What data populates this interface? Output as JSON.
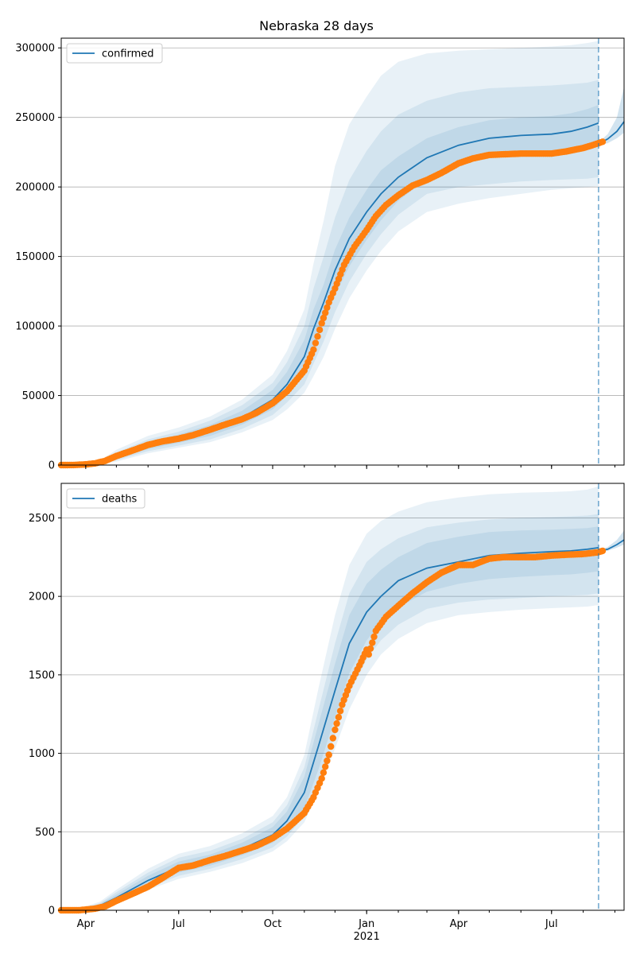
{
  "title": "Nebraska 28 days",
  "colors": {
    "model": "#1f77b4",
    "observed": "#ff7f0e",
    "band": "#1f77b4",
    "grid": "#b0b0b0",
    "vline": "#1f77b4"
  },
  "chart_data": [
    {
      "type": "line",
      "title": "Nebraska 28 days",
      "xlabel": "",
      "ylabel": "",
      "legend": {
        "placement": "top-left",
        "entries": [
          "confirmed"
        ]
      },
      "grid": "horizontal",
      "xlim": [
        "2020-03-08",
        "2021-09-10"
      ],
      "ylim": [
        0,
        307000
      ],
      "yticks": [
        0,
        50000,
        100000,
        150000,
        200000,
        250000,
        300000
      ],
      "ytick_labels": [
        "0",
        "50000",
        "100000",
        "150000",
        "200000",
        "250000",
        "300000"
      ],
      "forecast_start": "2021-08-16",
      "model": {
        "name": "confirmed",
        "x": [
          "2020-03-08",
          "2020-04-01",
          "2020-04-15",
          "2020-05-01",
          "2020-06-01",
          "2020-07-01",
          "2020-08-01",
          "2020-09-01",
          "2020-10-01",
          "2020-10-15",
          "2020-11-01",
          "2020-11-10",
          "2020-11-20",
          "2020-12-01",
          "2020-12-15",
          "2021-01-01",
          "2021-01-15",
          "2021-02-01",
          "2021-03-01",
          "2021-04-01",
          "2021-05-01",
          "2021-06-01",
          "2021-07-01",
          "2021-07-20",
          "2021-08-05",
          "2021-08-16"
        ],
        "y": [
          0,
          500,
          1500,
          6000,
          14000,
          19000,
          25000,
          34000,
          47000,
          58000,
          78000,
          98000,
          117000,
          140000,
          163000,
          182000,
          195000,
          207000,
          221000,
          230000,
          235000,
          237000,
          238000,
          240000,
          243000,
          246000
        ],
        "lower80": [
          0,
          300,
          1000,
          4500,
          11500,
          16000,
          21000,
          29000,
          40000,
          50000,
          66000,
          84000,
          102000,
          122000,
          143000,
          162000,
          176000,
          190000,
          206000,
          216000,
          222000,
          225000,
          226000,
          228000,
          230000,
          233000
        ],
        "upper80": [
          0,
          700,
          2000,
          7500,
          16500,
          22000,
          29000,
          39000,
          54000,
          67000,
          90000,
          112000,
          130000,
          155000,
          178000,
          198000,
          212000,
          222000,
          235000,
          243000,
          248000,
          250000,
          251000,
          253000,
          256000,
          259000
        ],
        "lower95": [
          0,
          150,
          700,
          3500,
          10000,
          14000,
          18500,
          26000,
          36000,
          45000,
          58000,
          73000,
          89000,
          110000,
          132000,
          152000,
          166000,
          180000,
          195000,
          200000,
          202000,
          204000,
          205000,
          205500,
          206000,
          207000
        ],
        "upper95": [
          0,
          900,
          2500,
          9000,
          18500,
          24000,
          32000,
          43000,
          59000,
          74000,
          100000,
          127000,
          150000,
          178000,
          205000,
          226000,
          240000,
          252000,
          262000,
          268000,
          271000,
          272000,
          273000,
          274000,
          275000,
          277000
        ],
        "lower99": [
          0,
          80,
          500,
          2500,
          8500,
          12500,
          16500,
          23500,
          32500,
          40000,
          52000,
          64000,
          78000,
          98000,
          120000,
          140000,
          154000,
          168000,
          182000,
          188000,
          192000,
          195000,
          198000,
          199000,
          200000,
          200500
        ],
        "upper99": [
          0,
          1200,
          3200,
          11000,
          21000,
          27000,
          35000,
          47000,
          65000,
          82000,
          112000,
          145000,
          176000,
          215000,
          245000,
          265000,
          280000,
          290000,
          296000,
          298000,
          299000,
          300000,
          301000,
          302000,
          303500,
          305000
        ]
      },
      "forecast": {
        "x": [
          "2021-08-16",
          "2021-08-25",
          "2021-09-03",
          "2021-09-10"
        ],
        "y": [
          231000,
          234500,
          240000,
          247000
        ],
        "lower": [
          230000,
          231500,
          235000,
          239000
        ],
        "upper": [
          232000,
          238000,
          250000,
          272000
        ]
      },
      "observed": {
        "name": "confirmed observed",
        "x": [
          "2020-03-08",
          "2020-03-20",
          "2020-04-01",
          "2020-04-10",
          "2020-04-20",
          "2020-05-01",
          "2020-05-15",
          "2020-06-01",
          "2020-06-15",
          "2020-07-01",
          "2020-07-15",
          "2020-08-01",
          "2020-08-15",
          "2020-09-01",
          "2020-09-15",
          "2020-10-01",
          "2020-10-15",
          "2020-11-01",
          "2020-11-10",
          "2020-11-18",
          "2020-11-25",
          "2020-12-01",
          "2020-12-10",
          "2020-12-20",
          "2021-01-01",
          "2021-01-10",
          "2021-01-20",
          "2021-02-01",
          "2021-02-15",
          "2021-03-01",
          "2021-03-15",
          "2021-04-01",
          "2021-04-15",
          "2021-05-01",
          "2021-05-15",
          "2021-06-01",
          "2021-06-15",
          "2021-07-01",
          "2021-07-15",
          "2021-08-01",
          "2021-08-10",
          "2021-08-20"
        ],
        "y": [
          0,
          50,
          500,
          1200,
          3000,
          6500,
          10000,
          14500,
          17000,
          19000,
          21500,
          25500,
          29000,
          33000,
          37500,
          44500,
          53000,
          68000,
          83000,
          102000,
          117000,
          127000,
          144000,
          157000,
          169000,
          179000,
          187000,
          194000,
          201000,
          205000,
          210000,
          217000,
          220500,
          223000,
          223500,
          224000,
          224000,
          224000,
          225500,
          228000,
          230000,
          232500
        ]
      }
    },
    {
      "type": "line",
      "title": "",
      "xlabel": "",
      "ylabel": "",
      "legend": {
        "placement": "top-left",
        "entries": [
          "deaths"
        ]
      },
      "grid": "horizontal",
      "xlim": [
        "2020-03-08",
        "2021-09-10"
      ],
      "ylim": [
        0,
        2720
      ],
      "yticks": [
        0,
        500,
        1000,
        1500,
        2000,
        2500
      ],
      "ytick_labels": [
        "0",
        "500",
        "1000",
        "1500",
        "2000",
        "2500"
      ],
      "xtick_labels": [
        "Apr",
        "Jul",
        "Oct",
        "Jan",
        "Apr",
        "Jul"
      ],
      "xtick_dates": [
        "2020-04-01",
        "2020-07-01",
        "2020-10-01",
        "2021-01-01",
        "2021-04-01",
        "2021-07-01"
      ],
      "year_label": "2021",
      "forecast_start": "2021-08-16",
      "model": {
        "name": "deaths",
        "x": [
          "2020-03-08",
          "2020-04-01",
          "2020-04-15",
          "2020-05-01",
          "2020-06-01",
          "2020-07-01",
          "2020-08-01",
          "2020-09-01",
          "2020-10-01",
          "2020-10-15",
          "2020-11-01",
          "2020-11-15",
          "2020-12-01",
          "2020-12-15",
          "2021-01-01",
          "2021-01-15",
          "2021-02-01",
          "2021-03-01",
          "2021-04-01",
          "2021-05-01",
          "2021-06-01",
          "2021-07-01",
          "2021-07-20",
          "2021-08-05",
          "2021-08-16"
        ],
        "y": [
          0,
          10,
          30,
          80,
          190,
          275,
          320,
          390,
          480,
          570,
          750,
          1050,
          1400,
          1700,
          1900,
          2000,
          2100,
          2180,
          2220,
          2260,
          2275,
          2285,
          2290,
          2300,
          2310
        ],
        "lower80": [
          0,
          5,
          20,
          60,
          160,
          240,
          285,
          350,
          430,
          510,
          650,
          900,
          1230,
          1510,
          1720,
          1830,
          1930,
          2030,
          2080,
          2110,
          2125,
          2135,
          2140,
          2150,
          2160
        ],
        "upper80": [
          0,
          15,
          40,
          100,
          220,
          310,
          355,
          430,
          530,
          630,
          850,
          1190,
          1570,
          1880,
          2080,
          2170,
          2250,
          2340,
          2380,
          2410,
          2420,
          2425,
          2430,
          2435,
          2445
        ],
        "lower95": [
          0,
          3,
          15,
          50,
          145,
          220,
          265,
          325,
          400,
          470,
          600,
          820,
          1120,
          1380,
          1600,
          1720,
          1820,
          1920,
          1960,
          1980,
          1990,
          2000,
          2005,
          2010,
          2020
        ],
        "upper95": [
          0,
          20,
          45,
          115,
          240,
          335,
          380,
          455,
          560,
          670,
          910,
          1280,
          1700,
          2020,
          2220,
          2300,
          2370,
          2440,
          2470,
          2490,
          2500,
          2505,
          2510,
          2515,
          2525
        ],
        "lower99": [
          0,
          2,
          10,
          40,
          130,
          200,
          245,
          300,
          375,
          440,
          560,
          760,
          1030,
          1280,
          1500,
          1630,
          1730,
          1830,
          1880,
          1900,
          1915,
          1925,
          1930,
          1935,
          1945
        ],
        "upper99": [
          0,
          25,
          55,
          130,
          265,
          360,
          410,
          490,
          600,
          720,
          990,
          1420,
          1880,
          2200,
          2400,
          2480,
          2540,
          2600,
          2630,
          2650,
          2660,
          2665,
          2670,
          2680,
          2700
        ]
      },
      "forecast": {
        "x": [
          "2021-08-16",
          "2021-08-25",
          "2021-09-03",
          "2021-09-10"
        ],
        "y": [
          2290,
          2300,
          2330,
          2360
        ],
        "lower": [
          2285,
          2290,
          2310,
          2330
        ],
        "upper": [
          2295,
          2315,
          2360,
          2420
        ]
      },
      "observed": {
        "name": "deaths observed",
        "x": [
          "2020-03-08",
          "2020-03-25",
          "2020-04-10",
          "2020-04-20",
          "2020-05-01",
          "2020-05-15",
          "2020-06-01",
          "2020-06-15",
          "2020-07-01",
          "2020-07-15",
          "2020-08-01",
          "2020-08-15",
          "2020-09-01",
          "2020-09-15",
          "2020-10-01",
          "2020-10-15",
          "2020-11-01",
          "2020-11-10",
          "2020-11-18",
          "2020-11-25",
          "2020-12-01",
          "2020-12-08",
          "2020-12-15",
          "2020-12-25",
          "2021-01-01",
          "2021-01-03",
          "2021-01-10",
          "2021-01-20",
          "2021-02-01",
          "2021-02-15",
          "2021-03-01",
          "2021-03-15",
          "2021-04-01",
          "2021-04-15",
          "2021-05-01",
          "2021-05-15",
          "2021-06-01",
          "2021-06-15",
          "2021-07-01",
          "2021-07-15",
          "2021-08-01",
          "2021-08-15",
          "2021-08-20"
        ],
        "y": [
          0,
          0,
          10,
          25,
          60,
          100,
          150,
          205,
          270,
          285,
          320,
          345,
          380,
          410,
          460,
          520,
          620,
          720,
          840,
          990,
          1150,
          1310,
          1430,
          1560,
          1660,
          1630,
          1780,
          1870,
          1940,
          2020,
          2090,
          2150,
          2200,
          2200,
          2240,
          2250,
          2250,
          2250,
          2260,
          2265,
          2270,
          2280,
          2290
        ]
      }
    }
  ]
}
